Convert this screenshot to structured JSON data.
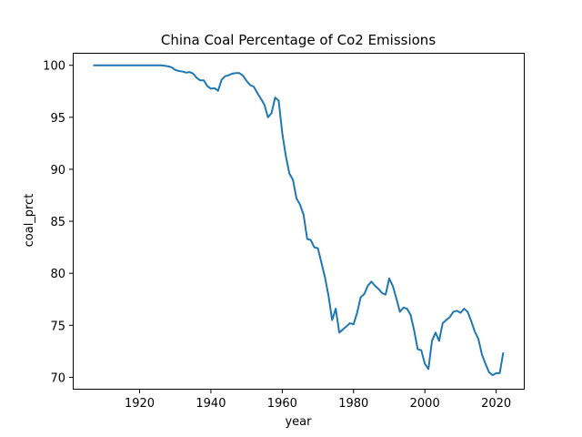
{
  "chart_data": {
    "type": "line",
    "title": "China Coal Percentage of Co2 Emissions",
    "xlabel": "year",
    "ylabel": "coal_prct",
    "xlim": [
      1901.25,
      2027.75
    ],
    "ylim": [
      68.9,
      101.2
    ],
    "xticks": [
      1920,
      1940,
      1960,
      1980,
      2000,
      2020
    ],
    "yticks": [
      70,
      75,
      80,
      85,
      90,
      95,
      100
    ],
    "grid": false,
    "legend": "none",
    "line_color": "#1f77b4",
    "series": [
      {
        "x": [
          1907,
          1910,
          1915,
          1920,
          1925,
          1926,
          1927,
          1928,
          1929,
          1930,
          1931,
          1932,
          1933,
          1934,
          1935,
          1936,
          1937,
          1938,
          1939,
          1940,
          1941,
          1942,
          1943,
          1944,
          1945,
          1946,
          1947,
          1948,
          1949,
          1950,
          1951,
          1952,
          1953,
          1954,
          1955,
          1956,
          1957,
          1958,
          1959,
          1960,
          1961,
          1962,
          1963,
          1964,
          1965,
          1966,
          1967,
          1968,
          1969,
          1970,
          1971,
          1972,
          1973,
          1974,
          1975,
          1976,
          1977,
          1978,
          1979,
          1980,
          1981,
          1982,
          1983,
          1984,
          1985,
          1986,
          1987,
          1988,
          1989,
          1990,
          1991,
          1992,
          1993,
          1994,
          1995,
          1996,
          1997,
          1998,
          1999,
          2000,
          2001,
          2002,
          2003,
          2004,
          2005,
          2006,
          2007,
          2008,
          2009,
          2010,
          2011,
          2012,
          2013,
          2014,
          2015,
          2016,
          2017,
          2018,
          2019,
          2020,
          2021,
          2022
        ],
        "y": [
          100.0,
          100.0,
          100.0,
          100.0,
          100.0,
          100.0,
          99.95,
          99.9,
          99.8,
          99.55,
          99.45,
          99.4,
          99.3,
          99.35,
          99.2,
          98.8,
          98.55,
          98.55,
          98.0,
          97.75,
          97.8,
          97.55,
          98.6,
          98.95,
          99.05,
          99.2,
          99.25,
          99.25,
          99.0,
          98.5,
          98.1,
          97.95,
          97.35,
          96.8,
          96.2,
          95.0,
          95.4,
          96.9,
          96.6,
          93.5,
          91.3,
          89.6,
          89.0,
          87.2,
          86.6,
          85.6,
          83.3,
          83.2,
          82.5,
          82.4,
          81.0,
          79.6,
          77.8,
          75.5,
          76.6,
          74.3,
          74.6,
          74.9,
          75.2,
          75.1,
          76.2,
          77.7,
          78.0,
          78.8,
          79.2,
          78.8,
          78.5,
          78.1,
          77.95,
          79.5,
          78.8,
          77.6,
          76.3,
          76.7,
          76.6,
          76.0,
          74.5,
          72.7,
          72.6,
          71.3,
          70.8,
          73.5,
          74.3,
          73.5,
          75.2,
          75.5,
          75.8,
          76.3,
          76.4,
          76.2,
          76.6,
          76.3,
          75.4,
          74.4,
          73.7,
          72.2,
          71.3,
          70.5,
          70.2,
          70.4,
          70.4,
          72.4
        ]
      }
    ]
  }
}
